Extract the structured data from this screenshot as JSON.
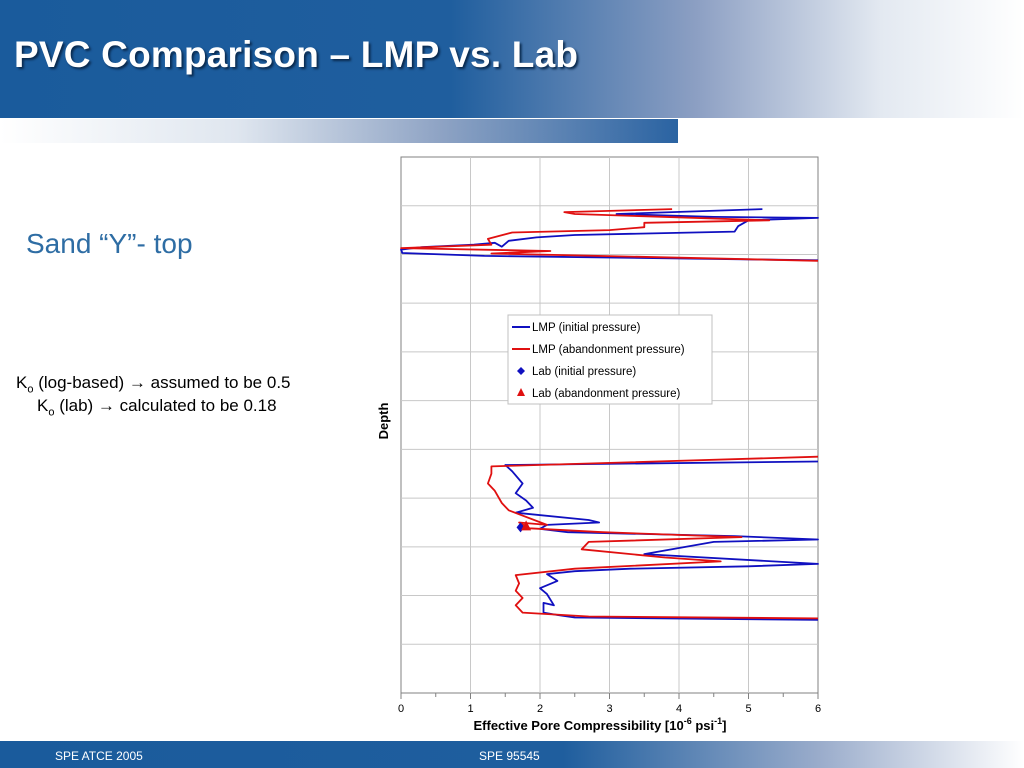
{
  "slide": {
    "title": "PVC Comparison – LMP vs. Lab",
    "section": "Sand “Y”- top",
    "note1": {
      "k": "K",
      "sub": "o",
      "text": " (log-based) → assumed to be 0.5"
    },
    "note2": {
      "k": "K",
      "sub": "o",
      "text": " (lab) → calculated to be 0.18"
    }
  },
  "footer": {
    "left": "SPE ATCE 2005",
    "center": "SPE 95545"
  },
  "colors": {
    "brand_blue": "#1f5e9e",
    "initial": "#1010c0",
    "abandonment": "#e01010"
  },
  "chart_data": {
    "type": "line",
    "xlabel_main": "Effective Pore Compressibility [10",
    "xlabel_sup1": "-6",
    "xlabel_mid": " psi",
    "xlabel_sup2": "-1",
    "xlabel_end": "]",
    "ylabel": "Depth",
    "xlim": [
      0,
      6
    ],
    "ylim": [
      0,
      11
    ],
    "y_inverted": true,
    "y_tick_labels": false,
    "x_ticks": [
      0,
      1,
      2,
      3,
      4,
      5,
      6
    ],
    "x_minor_step": 0.5,
    "y_gridlines": [
      1,
      2,
      3,
      4,
      5,
      6,
      7,
      8,
      9,
      10
    ],
    "x_gridlines": [
      1,
      2,
      3,
      4,
      5
    ],
    "legend": {
      "position": "center-right",
      "entries": [
        {
          "name": "LMP (initial pressure)",
          "kind": "line",
          "color": "#1010c0"
        },
        {
          "name": "LMP (abandonment pressure)",
          "kind": "line",
          "color": "#e01010"
        },
        {
          "name": "Lab (initial pressure)",
          "kind": "diamond",
          "color": "#1010c0"
        },
        {
          "name": "Lab (abandonment pressure)",
          "kind": "triangle",
          "color": "#e01010"
        }
      ]
    },
    "series": [
      {
        "name": "LMP (initial pressure)",
        "color": "#1010c0",
        "segments": [
          [
            [
              5.2,
              1.07
            ],
            [
              3.1,
              1.17
            ],
            [
              4.5,
              1.23
            ],
            [
              6.0,
              1.25
            ],
            [
              5.0,
              1.3
            ],
            [
              4.85,
              1.42
            ],
            [
              4.8,
              1.53
            ],
            [
              2.5,
              1.6
            ],
            [
              1.95,
              1.65
            ],
            [
              1.55,
              1.72
            ],
            [
              1.45,
              1.84
            ],
            [
              1.35,
              1.76
            ],
            [
              1.05,
              1.8
            ],
            [
              0.3,
              1.85
            ],
            [
              0.0,
              1.9
            ],
            [
              0.02,
              1.97
            ],
            [
              1.2,
              2.03
            ],
            [
              6.0,
              2.12
            ]
          ],
          [
            [
              6.0,
              6.25
            ],
            [
              1.5,
              6.32
            ],
            [
              1.6,
              6.45
            ],
            [
              1.75,
              6.7
            ],
            [
              1.65,
              6.9
            ],
            [
              1.8,
              7.05
            ],
            [
              1.9,
              7.2
            ],
            [
              1.65,
              7.3
            ],
            [
              2.7,
              7.45
            ],
            [
              2.85,
              7.5
            ],
            [
              2.1,
              7.55
            ],
            [
              2.0,
              7.63
            ],
            [
              2.4,
              7.7
            ],
            [
              4.8,
              7.78
            ],
            [
              6.0,
              7.85
            ],
            [
              4.5,
              7.9
            ],
            [
              3.5,
              8.15
            ],
            [
              6.0,
              8.35
            ],
            [
              5.0,
              8.4
            ],
            [
              3.3,
              8.45
            ],
            [
              2.5,
              8.5
            ],
            [
              2.1,
              8.56
            ],
            [
              2.25,
              8.7
            ],
            [
              2.0,
              8.85
            ],
            [
              2.1,
              8.97
            ],
            [
              2.2,
              9.2
            ],
            [
              2.05,
              9.15
            ],
            [
              2.05,
              9.35
            ],
            [
              2.25,
              9.4
            ],
            [
              2.5,
              9.45
            ],
            [
              6.0,
              9.5
            ]
          ]
        ]
      },
      {
        "name": "LMP (abandonment pressure)",
        "color": "#e01010",
        "segments": [
          [
            [
              3.9,
              1.07
            ],
            [
              2.35,
              1.13
            ],
            [
              2.5,
              1.17
            ],
            [
              5.3,
              1.3
            ],
            [
              3.5,
              1.35
            ],
            [
              3.5,
              1.44
            ],
            [
              3.0,
              1.5
            ],
            [
              1.6,
              1.55
            ],
            [
              1.25,
              1.68
            ],
            [
              1.3,
              1.8
            ],
            [
              0.0,
              1.87
            ],
            [
              2.15,
              1.93
            ],
            [
              1.3,
              1.98
            ],
            [
              6.0,
              2.13
            ]
          ],
          [
            [
              6.0,
              6.15
            ],
            [
              1.3,
              6.35
            ],
            [
              1.3,
              6.5
            ],
            [
              1.25,
              6.7
            ],
            [
              1.35,
              6.85
            ],
            [
              1.45,
              7.1
            ],
            [
              1.55,
              7.25
            ],
            [
              2.1,
              7.55
            ],
            [
              1.7,
              7.5
            ],
            [
              1.85,
              7.62
            ],
            [
              2.9,
              7.7
            ],
            [
              4.9,
              7.8
            ],
            [
              2.7,
              7.9
            ],
            [
              2.6,
              8.05
            ],
            [
              3.8,
              8.22
            ],
            [
              4.6,
              8.3
            ],
            [
              2.5,
              8.45
            ],
            [
              1.65,
              8.58
            ],
            [
              1.7,
              8.75
            ],
            [
              1.65,
              8.9
            ],
            [
              1.75,
              9.05
            ],
            [
              1.65,
              9.2
            ],
            [
              1.75,
              9.35
            ],
            [
              2.7,
              9.43
            ],
            [
              6.0,
              9.47
            ]
          ]
        ]
      },
      {
        "name": "Lab (initial pressure)",
        "color": "#1010c0",
        "marker": "diamond",
        "points": [
          [
            1.72,
            7.6
          ]
        ]
      },
      {
        "name": "Lab (abandonment pressure)",
        "color": "#e01010",
        "marker": "triangle",
        "points": [
          [
            1.8,
            7.58
          ]
        ]
      }
    ]
  }
}
